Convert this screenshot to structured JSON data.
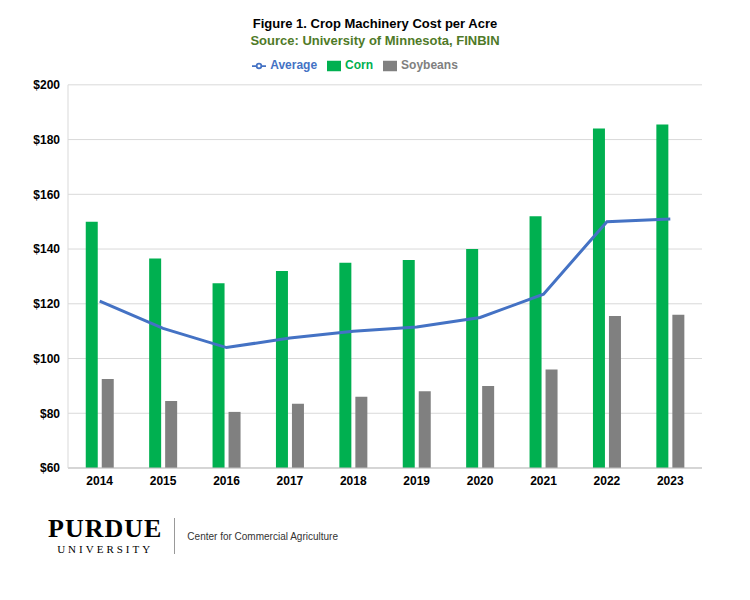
{
  "chart_data": {
    "type": "bar",
    "title": "Figure 1.  Crop Machinery Cost per Acre",
    "subtitle": "Source:  University of Minnesota, FINBIN",
    "annotations": [
      "PURDUE",
      "UNIVERSITY",
      "Center for Commercial Agriculture"
    ],
    "categories": [
      "2014",
      "2015",
      "2016",
      "2017",
      "2018",
      "2019",
      "2020",
      "2021",
      "2022",
      "2023"
    ],
    "series": [
      {
        "name": "Corn",
        "type": "bar",
        "color": "#00b050",
        "values": [
          150,
          136.5,
          127.5,
          132,
          135,
          136,
          140,
          152,
          184,
          185.5
        ]
      },
      {
        "name": "Soybeans",
        "type": "bar",
        "color": "#808080",
        "values": [
          92.5,
          84.5,
          80.5,
          83.5,
          86,
          88,
          90,
          96,
          115.5,
          116
        ]
      },
      {
        "name": "Average",
        "type": "line",
        "color": "#4472c4",
        "values": [
          121,
          111,
          104,
          107.5,
          110,
          111.5,
          115,
          123.5,
          150,
          151
        ]
      }
    ],
    "ylim": [
      60,
      200
    ],
    "yticks": [
      {
        "value": 60,
        "label": "$60"
      },
      {
        "value": 80,
        "label": "$80"
      },
      {
        "value": 100,
        "label": "$100"
      },
      {
        "value": 120,
        "label": "$120"
      },
      {
        "value": 140,
        "label": "$140"
      },
      {
        "value": 160,
        "label": "$160"
      },
      {
        "value": 180,
        "label": "$180"
      },
      {
        "value": 200,
        "label": "$200"
      }
    ],
    "grid": true,
    "legend": "top"
  }
}
